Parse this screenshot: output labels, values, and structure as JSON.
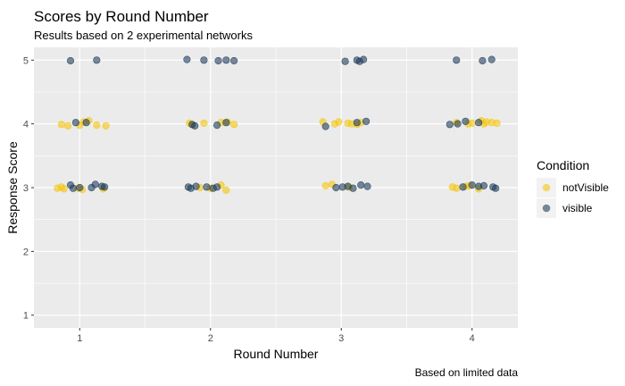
{
  "chart_data": {
    "type": "scatter",
    "title": "Scores by Round Number",
    "subtitle": "Results based on 2 experimental networks",
    "xlabel": "Round Number",
    "ylabel": "Response Score",
    "caption": "Based on limited data",
    "x_ticks": [
      "1",
      "2",
      "3",
      "4"
    ],
    "y_ticks": [
      "1",
      "2",
      "3",
      "4",
      "5"
    ],
    "xlim": [
      0.65,
      4.35
    ],
    "ylim": [
      0.8,
      5.2
    ],
    "grid": true,
    "jitter": true,
    "legend": {
      "title": "Condition",
      "position": "right",
      "entries": [
        "notVisible",
        "visible"
      ]
    },
    "series": [
      {
        "name": "notVisible",
        "color": "#F5C710",
        "points": [
          [
            0.86,
            3.99
          ],
          [
            0.91,
            3.97
          ],
          [
            1.0,
            3.98
          ],
          [
            1.03,
            4.03
          ],
          [
            1.07,
            4.05
          ],
          [
            1.13,
            3.98
          ],
          [
            1.2,
            3.97
          ],
          [
            0.83,
            2.99
          ],
          [
            0.86,
            3.01
          ],
          [
            0.88,
            2.98
          ],
          [
            0.99,
            2.99
          ],
          [
            1.02,
            2.97
          ],
          [
            1.18,
            2.98
          ],
          [
            1.84,
            4.01
          ],
          [
            1.86,
            3.99
          ],
          [
            1.95,
            4.01
          ],
          [
            2.08,
            4.02
          ],
          [
            2.13,
            4.03
          ],
          [
            2.18,
            3.99
          ],
          [
            1.92,
            3.0
          ],
          [
            2.0,
            2.99
          ],
          [
            2.08,
            3.04
          ],
          [
            2.12,
            2.96
          ],
          [
            2.86,
            4.03
          ],
          [
            2.95,
            4.0
          ],
          [
            2.98,
            4.03
          ],
          [
            3.05,
            4.01
          ],
          [
            3.08,
            4.0
          ],
          [
            3.12,
            3.99
          ],
          [
            3.15,
            4.02
          ],
          [
            2.88,
            3.03
          ],
          [
            2.93,
            3.05
          ],
          [
            3.06,
            3.01
          ],
          [
            3.88,
            4.02
          ],
          [
            3.97,
            4.0
          ],
          [
            4.0,
            4.01
          ],
          [
            4.07,
            4.05
          ],
          [
            4.09,
            4.0
          ],
          [
            4.11,
            4.03
          ],
          [
            4.15,
            4.02
          ],
          [
            4.19,
            4.01
          ],
          [
            3.85,
            3.01
          ],
          [
            3.88,
            2.99
          ],
          [
            3.95,
            3.02
          ],
          [
            3.98,
            3.03
          ],
          [
            4.05,
            2.98
          ]
        ]
      },
      {
        "name": "visible",
        "color": "#1F3D5C",
        "points": [
          [
            0.93,
            4.99
          ],
          [
            1.13,
            5.0
          ],
          [
            0.97,
            4.02
          ],
          [
            1.05,
            4.02
          ],
          [
            0.93,
            3.04
          ],
          [
            0.95,
            2.99
          ],
          [
            1.0,
            3.0
          ],
          [
            1.09,
            3.0
          ],
          [
            1.12,
            3.05
          ],
          [
            1.17,
            3.02
          ],
          [
            1.19,
            3.01
          ],
          [
            1.82,
            5.01
          ],
          [
            1.95,
            5.0
          ],
          [
            2.06,
            4.99
          ],
          [
            2.12,
            5.0
          ],
          [
            2.18,
            4.99
          ],
          [
            1.86,
            3.99
          ],
          [
            1.88,
            3.97
          ],
          [
            2.05,
            3.98
          ],
          [
            2.12,
            4.02
          ],
          [
            1.83,
            3.01
          ],
          [
            1.85,
            2.99
          ],
          [
            1.89,
            3.02
          ],
          [
            1.97,
            3.01
          ],
          [
            2.02,
            2.99
          ],
          [
            2.05,
            3.01
          ],
          [
            3.03,
            4.98
          ],
          [
            3.12,
            5.0
          ],
          [
            3.14,
            4.98
          ],
          [
            3.17,
            5.01
          ],
          [
            2.88,
            3.96
          ],
          [
            3.12,
            4.02
          ],
          [
            3.19,
            4.04
          ],
          [
            2.96,
            3.0
          ],
          [
            3.01,
            3.01
          ],
          [
            3.05,
            3.02
          ],
          [
            3.09,
            2.99
          ],
          [
            3.15,
            3.04
          ],
          [
            3.2,
            3.02
          ],
          [
            3.88,
            5.0
          ],
          [
            4.08,
            4.99
          ],
          [
            4.15,
            5.01
          ],
          [
            3.83,
            3.99
          ],
          [
            3.89,
            4.0
          ],
          [
            3.95,
            4.04
          ],
          [
            4.05,
            4.02
          ],
          [
            3.93,
            3.01
          ],
          [
            4.0,
            3.04
          ],
          [
            4.05,
            3.02
          ],
          [
            4.09,
            3.03
          ],
          [
            4.16,
            3.01
          ],
          [
            4.18,
            2.99
          ]
        ]
      }
    ]
  }
}
